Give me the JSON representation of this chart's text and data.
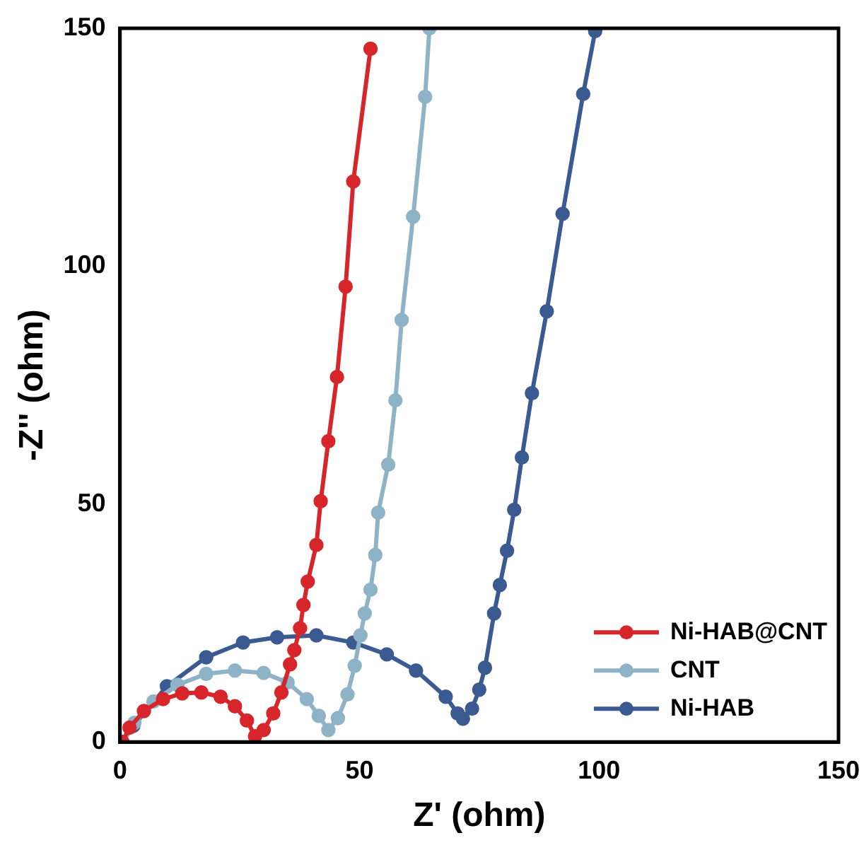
{
  "chart_data": {
    "type": "line",
    "xlabel": "Z' (ohm)",
    "ylabel": "-Z'' (ohm)",
    "xlim": [
      0,
      150
    ],
    "ylim": [
      0,
      150
    ],
    "xticks": [
      0,
      50,
      100,
      150
    ],
    "yticks": [
      0,
      50,
      100,
      150
    ],
    "grid": false,
    "legend": "bottom right",
    "marker": "circle",
    "line_style": "solid",
    "series": [
      {
        "name": "Ni-HAB@CNT",
        "color": "#d7262b",
        "x": [
          0.5,
          2,
          5,
          9,
          13,
          17,
          21,
          24,
          26.5,
          28.2,
          30,
          32,
          33.7,
          35.5,
          36.4,
          37.6,
          38.3,
          39.2,
          41,
          41.9,
          43.5,
          45.3,
          47.1,
          48.7,
          52.3
        ],
        "values": [
          0,
          3,
          6.5,
          9,
          10.2,
          10.4,
          9.5,
          7.5,
          4.5,
          1.2,
          2.5,
          6,
          10.4,
          16.3,
          19.3,
          23.9,
          28.8,
          33.7,
          41.4,
          50.6,
          63.2,
          76.7,
          95.7,
          117.8,
          145.7
        ]
      },
      {
        "name": "CNT",
        "color": "#8fb3c6",
        "x": [
          0.5,
          3,
          7,
          12,
          18,
          24,
          30,
          35,
          39,
          41.5,
          43.5,
          45.5,
          47.5,
          49,
          50.2,
          51.1,
          52.3,
          53.3,
          53.9,
          56,
          57.5,
          58.8,
          61.2,
          63.7,
          64.6
        ],
        "values": [
          0,
          4,
          8.5,
          12,
          14.3,
          15,
          14.5,
          12.5,
          9,
          5.5,
          2.5,
          5,
          10,
          16,
          22.4,
          27,
          32,
          39.3,
          48.2,
          58.3,
          71.8,
          88.7,
          110.4,
          135.6,
          150
        ]
      },
      {
        "name": "Ni-HAB",
        "color": "#3b5a91",
        "x": [
          0.5,
          2.8,
          9.8,
          18,
          25.7,
          32.8,
          41,
          48.7,
          55.7,
          61.8,
          68,
          70.5,
          71.6,
          73.5,
          75,
          76.2,
          78.1,
          79.3,
          80.8,
          82.3,
          83.9,
          86,
          89.1,
          92.4,
          96.7,
          99.2
        ],
        "values": [
          0,
          3.4,
          11.7,
          17.8,
          20.9,
          22,
          22.4,
          20.9,
          18.4,
          15,
          9.5,
          6,
          4.9,
          7,
          11,
          15.6,
          27,
          33,
          40.2,
          48.8,
          59.8,
          73.3,
          90.5,
          111,
          136.2,
          149.4
        ]
      }
    ]
  }
}
